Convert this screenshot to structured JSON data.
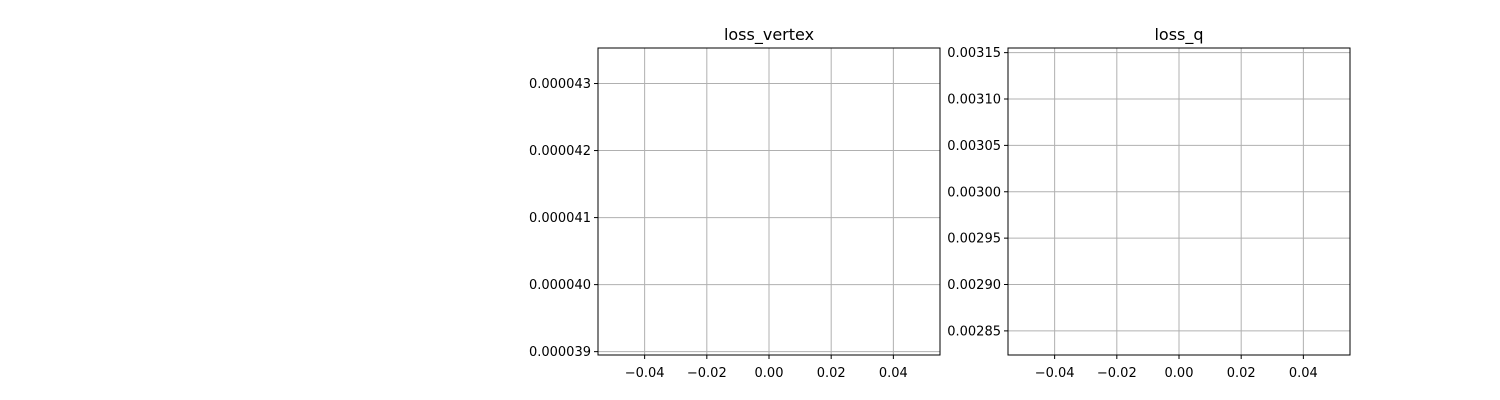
{
  "chart_data": [
    {
      "type": "line",
      "title": "loss_vertex",
      "xlabel": "",
      "ylabel": "",
      "series": [],
      "xlim": [
        -0.055,
        0.055
      ],
      "ylim": [
        3.895e-05,
        4.353e-05
      ],
      "xticks": [
        -0.04,
        -0.02,
        0.0,
        0.02,
        0.04
      ],
      "xtick_labels": [
        "−0.04",
        "−0.02",
        "0.00",
        "0.02",
        "0.04"
      ],
      "yticks": [
        3.9e-05,
        4e-05,
        4.1e-05,
        4.2e-05,
        4.3e-05
      ],
      "ytick_labels": [
        "0.000039",
        "0.000040",
        "0.000041",
        "0.000042",
        "0.000043"
      ],
      "grid": true,
      "grid_color": "#b0b0b0"
    },
    {
      "type": "line",
      "title": "loss_q",
      "xlabel": "",
      "ylabel": "",
      "series": [],
      "xlim": [
        -0.055,
        0.055
      ],
      "ylim": [
        0.002824,
        0.003155
      ],
      "xticks": [
        -0.04,
        -0.02,
        0.0,
        0.02,
        0.04
      ],
      "xtick_labels": [
        "−0.04",
        "−0.02",
        "0.00",
        "0.02",
        "0.04"
      ],
      "yticks": [
        0.00285,
        0.0029,
        0.00295,
        0.003,
        0.00305,
        0.0031,
        0.00315
      ],
      "ytick_labels": [
        "0.00285",
        "0.00290",
        "0.00295",
        "0.00300",
        "0.00305",
        "0.00310",
        "0.00315"
      ],
      "grid": true,
      "grid_color": "#b0b0b0"
    }
  ]
}
